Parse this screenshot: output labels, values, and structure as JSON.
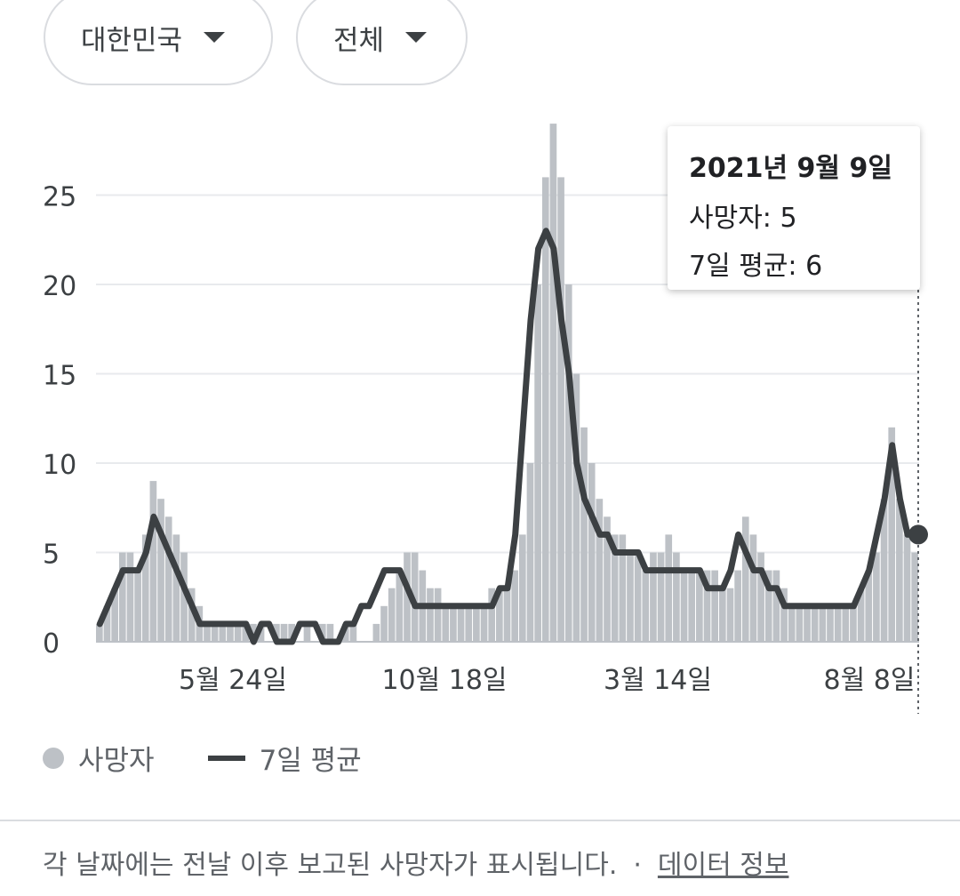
{
  "filters": {
    "country": "대한민국",
    "scope": "전체"
  },
  "tooltip": {
    "date": "2021년 9월 9일",
    "deaths_label": "사망자: 5",
    "avg_label": "7일 평균: 6"
  },
  "legend": {
    "deaths": "사망자",
    "avg": "7일 평균"
  },
  "footer": {
    "note": "각 날짜에는 전날 이후 보고된 사망자가 표시됩니다.",
    "separator": "·",
    "link": "데이터 정보"
  },
  "colors": {
    "bars": "#bdc1c6",
    "line": "#3c4043",
    "grid": "#e8eaed"
  },
  "chart_data": {
    "type": "bar",
    "title": "",
    "ylim": [
      0,
      29
    ],
    "yticks": [
      0,
      5,
      10,
      15,
      20,
      25
    ],
    "xtick_labels": [
      "5월 24일",
      "10월 18일",
      "3월 14일",
      "8월 8일"
    ],
    "grid": true,
    "series": [
      {
        "name": "사망자",
        "kind": "bar",
        "x_label_anchor_index": [
          0,
          3,
          7,
          11
        ],
        "values": [
          1,
          2,
          3,
          5,
          5,
          4,
          6,
          9,
          8,
          7,
          6,
          5,
          3,
          2,
          1,
          1,
          1,
          1,
          1,
          1,
          1,
          1,
          0,
          1,
          1,
          1,
          0,
          1,
          0,
          1,
          1,
          0,
          1,
          1,
          0,
          0,
          1,
          2,
          3,
          4,
          5,
          5,
          4,
          3,
          3,
          2,
          2,
          2,
          2,
          2,
          2,
          3,
          3,
          3,
          4,
          6,
          10,
          20,
          26,
          30,
          26,
          20,
          15,
          12,
          10,
          8,
          7,
          6,
          6,
          5,
          5,
          4,
          5,
          5,
          6,
          5,
          4,
          4,
          4,
          4,
          4,
          3,
          3,
          4,
          7,
          6,
          5,
          4,
          4,
          3,
          2,
          2,
          2,
          2,
          2,
          2,
          2,
          2,
          2,
          3,
          4,
          5,
          8,
          12,
          8,
          6,
          5
        ]
      },
      {
        "name": "7일 평균",
        "kind": "line",
        "values": [
          1,
          2,
          3,
          4,
          4,
          4,
          5,
          7,
          6,
          5,
          4,
          3,
          2,
          1,
          1,
          1,
          1,
          1,
          1,
          1,
          0,
          1,
          1,
          0,
          0,
          0,
          1,
          1,
          1,
          0,
          0,
          0,
          1,
          1,
          2,
          2,
          3,
          4,
          4,
          4,
          3,
          2,
          2,
          2,
          2,
          2,
          2,
          2,
          2,
          2,
          2,
          2,
          3,
          3,
          6,
          12,
          18,
          22,
          23,
          22,
          18,
          15,
          10,
          8,
          7,
          6,
          6,
          5,
          5,
          5,
          5,
          4,
          4,
          4,
          4,
          4,
          4,
          4,
          4,
          3,
          3,
          3,
          4,
          6,
          5,
          4,
          4,
          3,
          3,
          2,
          2,
          2,
          2,
          2,
          2,
          2,
          2,
          2,
          2,
          3,
          4,
          6,
          8,
          11,
          8,
          6,
          6
        ]
      }
    ],
    "highlight": {
      "date": "2021년 9월 9일",
      "deaths": 5,
      "avg": 6
    }
  }
}
